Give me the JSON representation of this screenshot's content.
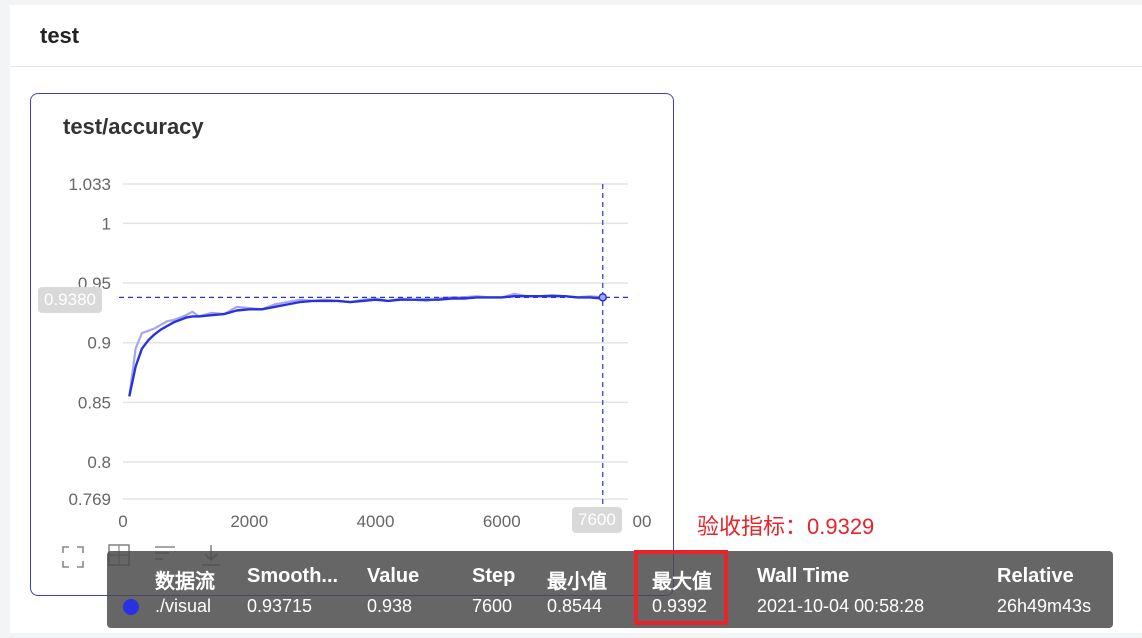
{
  "panel": {
    "title": "test"
  },
  "card": {
    "title": "test/accuracy",
    "toolbar": [
      "expand-icon",
      "fit-icon",
      "filter-icon",
      "download-icon"
    ]
  },
  "chart_data": {
    "type": "line",
    "title": "test/accuracy",
    "xlim": [
      0,
      8000
    ],
    "ylim": [
      0.769,
      1.033
    ],
    "x_ticks": [
      "0",
      "2000",
      "4000",
      "6000",
      "7600",
      "00"
    ],
    "y_ticks": [
      "1.033",
      "1",
      "0.95",
      "0.9",
      "0.85",
      "0.8",
      "0.769"
    ],
    "y_tick_values": [
      1.033,
      1,
      0.95,
      0.9,
      0.85,
      0.8,
      0.769
    ],
    "x_tick_values": [
      0,
      2000,
      4000,
      6000
    ],
    "hover_x": 7600,
    "hover_y": 0.938,
    "hover_x_label": "7600",
    "hover_y_label": "0.9380",
    "series": [
      {
        "role": "raw",
        "color": "#a5a8e6",
        "x": [
          100,
          200,
          300,
          400,
          500,
          600,
          700,
          800,
          900,
          1000,
          1100,
          1200,
          1400,
          1600,
          1800,
          2000,
          2200,
          2400,
          2600,
          2800,
          3000,
          3200,
          3400,
          3600,
          3800,
          4000,
          4200,
          4400,
          4600,
          4800,
          5000,
          5200,
          5400,
          5600,
          5800,
          6000,
          6200,
          6400,
          6600,
          6800,
          7000,
          7200,
          7400,
          7600
        ],
        "y": [
          0.855,
          0.895,
          0.908,
          0.91,
          0.912,
          0.915,
          0.918,
          0.919,
          0.921,
          0.923,
          0.926,
          0.922,
          0.925,
          0.924,
          0.93,
          0.929,
          0.928,
          0.932,
          0.934,
          0.936,
          0.935,
          0.936,
          0.935,
          0.934,
          0.936,
          0.937,
          0.935,
          0.937,
          0.936,
          0.935,
          0.937,
          0.938,
          0.938,
          0.939,
          0.938,
          0.938,
          0.941,
          0.939,
          0.939,
          0.94,
          0.939,
          0.938,
          0.939,
          0.938
        ]
      },
      {
        "role": "smoothed",
        "color": "#2832e0",
        "x": [
          100,
          200,
          300,
          400,
          500,
          600,
          700,
          800,
          900,
          1000,
          1100,
          1200,
          1400,
          1600,
          1800,
          2000,
          2200,
          2400,
          2600,
          2800,
          3000,
          3200,
          3400,
          3600,
          3800,
          4000,
          4200,
          4400,
          4600,
          4800,
          5000,
          5200,
          5400,
          5600,
          5800,
          6000,
          6200,
          6400,
          6600,
          6800,
          7000,
          7200,
          7400,
          7600
        ],
        "y": [
          0.855,
          0.88,
          0.895,
          0.902,
          0.907,
          0.911,
          0.914,
          0.917,
          0.919,
          0.921,
          0.922,
          0.922,
          0.923,
          0.924,
          0.927,
          0.928,
          0.928,
          0.93,
          0.932,
          0.934,
          0.935,
          0.935,
          0.935,
          0.934,
          0.935,
          0.936,
          0.935,
          0.936,
          0.936,
          0.936,
          0.936,
          0.937,
          0.937,
          0.938,
          0.938,
          0.938,
          0.939,
          0.939,
          0.939,
          0.939,
          0.939,
          0.938,
          0.938,
          0.937
        ]
      }
    ]
  },
  "tooltip": {
    "headers": [
      "数据流",
      "Smooth...",
      "Value",
      "Step",
      "最小值",
      "最大值",
      "Wall Time",
      "Relative"
    ],
    "row": [
      "./visual",
      "0.93715",
      "0.938",
      "7600",
      "0.8544",
      "0.9392",
      "2021-10-04 00:58:28",
      "26h49m43s"
    ],
    "dot_color": "#2832e0"
  },
  "annotation": {
    "text": "验收指标：0.9329"
  }
}
